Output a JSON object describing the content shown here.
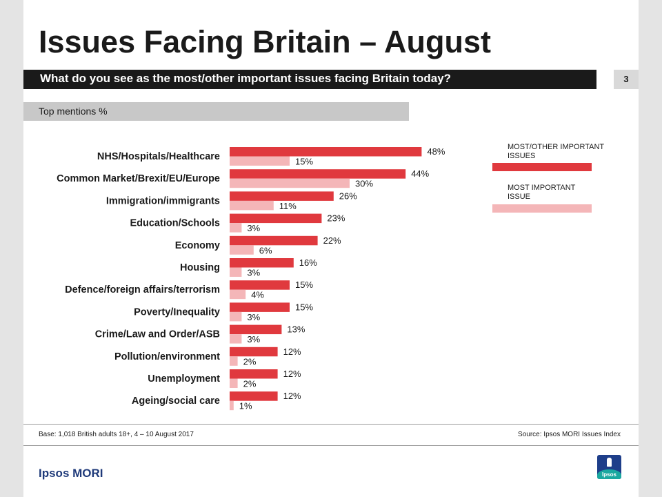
{
  "slide": {
    "title": "Issues Facing Britain – August",
    "question": "What do you see as the most/other important issues facing Britain today?",
    "page_number": "3",
    "top_mentions": "Top mentions %",
    "base_note": "Base: 1,018 British adults 18+, 4 – 10 August 2017",
    "source_note": "Source: Ipsos MORI Issues Index",
    "brand": "Ipsos MORI",
    "logo_text": "Ipsos"
  },
  "chart_data": {
    "type": "bar",
    "orientation": "horizontal",
    "categories": [
      "NHS/Hospitals/Healthcare",
      "Common Market/Brexit/EU/Europe",
      "Immigration/immigrants",
      "Education/Schools",
      "Economy",
      "Housing",
      "Defence/foreign affairs/terrorism",
      "Poverty/Inequality",
      "Crime/Law and Order/ASB",
      "Pollution/environment",
      "Unemployment",
      "Ageing/social care"
    ],
    "series": [
      {
        "name": "MOST/OTHER IMPORTANT ISSUES",
        "color": "#e0393e",
        "values": [
          48,
          44,
          26,
          23,
          22,
          16,
          15,
          15,
          13,
          12,
          12,
          12
        ]
      },
      {
        "name": "MOST IMPORTANT ISSUE",
        "color": "#f4b6b8",
        "values": [
          15,
          30,
          11,
          3,
          6,
          3,
          4,
          3,
          3,
          2,
          2,
          1
        ]
      }
    ],
    "value_suffix": "%",
    "xlim": [
      0,
      100
    ],
    "grid": false,
    "legend_position": "right"
  }
}
